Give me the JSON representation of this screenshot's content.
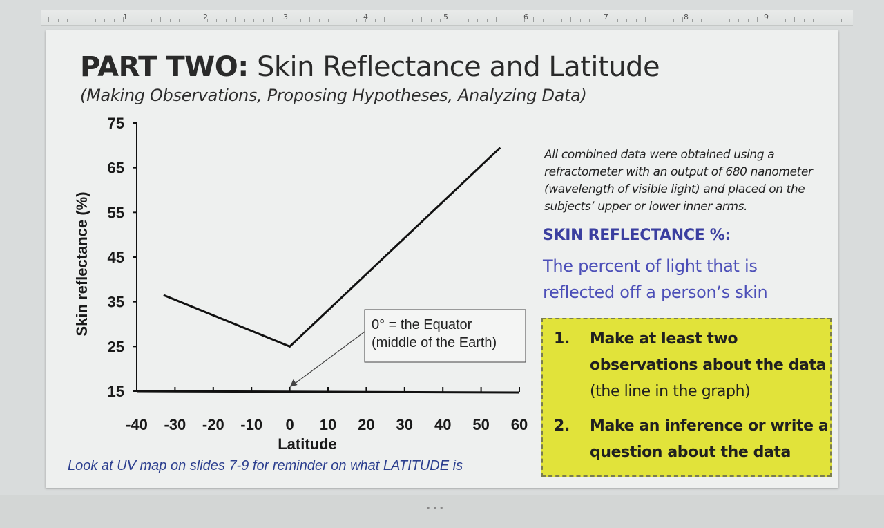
{
  "ruler": {
    "numbers": [
      "1",
      "2",
      "3",
      "4",
      "5",
      "6",
      "7",
      "8",
      "9"
    ]
  },
  "slide": {
    "title_bold": "PART TWO:",
    "title_rest": "Skin Reflectance and Latitude",
    "subtitle": "(Making Observations, Proposing Hypotheses, Analyzing Data)",
    "note": "All combined data were obtained using a refractometer with an output of 680 nanometer (wavelength of visible light) and placed on the subjects’ upper or lower inner arms.",
    "definition_heading": "SKIN REFLECTANCE %:",
    "definition_text": "The percent of light that is reflected off a person’s skin",
    "tasks": [
      {
        "num": "1.",
        "text": "Make at least two observations about the data",
        "sub": "(the line in the graph)"
      },
      {
        "num": "2.",
        "text": "Make an inference or write a question about the data",
        "sub": ""
      }
    ],
    "footer_note": "Look at UV map on slides 7-9 for reminder on what LATITUDE is"
  },
  "chart_data": {
    "type": "line",
    "xlabel": "Latitude",
    "ylabel": "Skin reflectance (%)",
    "x_ticks": [
      -40,
      -30,
      -20,
      -10,
      0,
      10,
      20,
      30,
      40,
      50,
      60
    ],
    "y_ticks": [
      15,
      25,
      35,
      45,
      55,
      65,
      75
    ],
    "xlim": [
      -40,
      60
    ],
    "ylim": [
      15,
      75
    ],
    "series": [
      {
        "x": [
          -33,
          0,
          55
        ],
        "y": [
          36.5,
          25,
          69.5
        ]
      }
    ],
    "annotation": {
      "lines": [
        "0° = the Equator",
        "(middle of the Earth)"
      ],
      "points_to": {
        "x": 0,
        "y": 15
      }
    },
    "grid": false,
    "legend": "none"
  }
}
